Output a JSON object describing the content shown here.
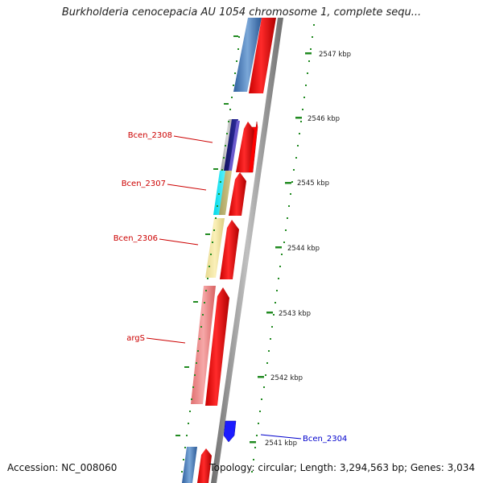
{
  "title": "Burkholderia cenocepacia AU 1054 chromosome 1, complete sequ...",
  "footer": {
    "accession": "Accession: NC_008060",
    "summary": "Topology: circular; Length: 3,294,563 bp; Genes: 3,034"
  },
  "ruler": {
    "ticks": [
      "2547 kbp",
      "2546 kbp",
      "2545 kbp",
      "2544 kbp",
      "2543 kbp",
      "2542 kbp",
      "2541 kbp"
    ]
  },
  "gene_labels": [
    {
      "name": "Bcen_2308",
      "color": "#cc0000"
    },
    {
      "name": "Bcen_2307",
      "color": "#cc0000"
    },
    {
      "name": "Bcen_2306",
      "color": "#cc0000"
    },
    {
      "name": "argS",
      "color": "#cc0000"
    },
    {
      "name": "Bcen_2304",
      "color": "#0000cc"
    }
  ],
  "colors": {
    "backbone": "#888888",
    "forward_cds": "#ff0000",
    "reverse_cds": "#0000ff",
    "tick": "#228b22",
    "label_forward": "#cc0000",
    "label_reverse": "#0000cc"
  }
}
